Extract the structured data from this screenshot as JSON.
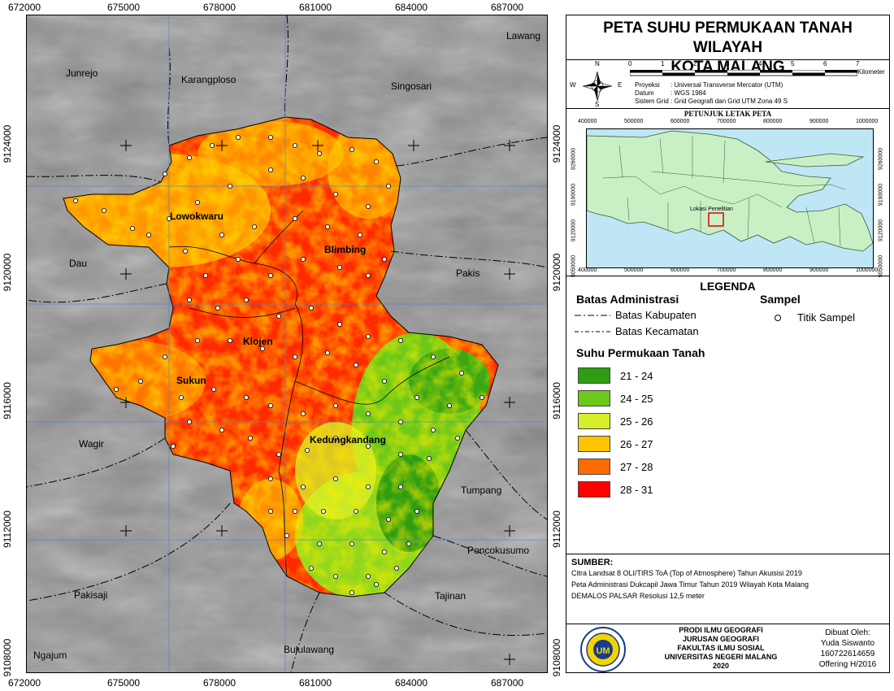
{
  "title": {
    "line1": "PETA SUHU PERMUKAAN TANAH WILAYAH",
    "line2": "KOTA MALANG"
  },
  "grid": {
    "top_x": [
      "672000",
      "675000",
      "678000",
      "681000",
      "684000",
      "687000"
    ],
    "bottom_x": [
      "672000",
      "675000",
      "678000",
      "681000",
      "684000",
      "687000"
    ],
    "left_y": [
      "9124000",
      "9120000",
      "9116000",
      "9112000",
      "9108000"
    ],
    "right_y": [
      "9124000",
      "9120000",
      "9116000",
      "9112000",
      "9108000"
    ]
  },
  "places": {
    "kabupaten": [
      "Lawang",
      "Junrejo",
      "Karangploso",
      "Singosari",
      "Dau",
      "Pakis",
      "Wagir",
      "Tumpang",
      "Poncokusumo",
      "Pakisaji",
      "Tajinan",
      "Ngajum",
      "Bululawang"
    ],
    "kecamatan": [
      "Lowokwaru",
      "Blimbing",
      "Klojen",
      "Sukun",
      "Kedungkandang"
    ]
  },
  "scalebar": {
    "ticks": [
      "0",
      "1",
      "2",
      "3",
      "4",
      "5",
      "6",
      "7"
    ],
    "unit": "Kilometer"
  },
  "compass": {
    "n": "N",
    "s": "S",
    "e": "E",
    "w": "W"
  },
  "projection": {
    "proj_label": "Proyeksi",
    "proj_value": ": Universal Transverse Mercator (UTM)",
    "datum_label": "Datum",
    "datum_value": ": WGS 1984",
    "grid_label": "Sistem Grid",
    "grid_value": ": Grid Geografi dan Grid UTM Zona 49 S"
  },
  "inset": {
    "title": "PETUNJUK LETAK PETA",
    "x_ticks": [
      "400000",
      "500000",
      "600000",
      "700000",
      "800000",
      "900000",
      "1000000"
    ],
    "y_ticks": [
      "9260000",
      "9190000",
      "9120000",
      "9050000"
    ],
    "study_label": "Lokasi Penelitian"
  },
  "legend": {
    "title": "LEGENDA",
    "admin_title": "Batas Administrasi",
    "admin_items": [
      "Batas Kabupaten",
      "Batas Kecamatan"
    ],
    "sample_title": "Sampel",
    "sample_item": "Titik Sampel",
    "lst_title": "Suhu Permukaan Tanah",
    "classes": [
      {
        "label": "21 - 24",
        "color": "#2e9d12"
      },
      {
        "label": "24 - 25",
        "color": "#6cc81a"
      },
      {
        "label": "25 - 26",
        "color": "#d6ef2a"
      },
      {
        "label": "26 - 27",
        "color": "#ffc400"
      },
      {
        "label": "27 - 28",
        "color": "#ff6a00"
      },
      {
        "label": "28 - 31",
        "color": "#ff0000"
      }
    ]
  },
  "source": {
    "title": "SUMBER:",
    "lines": [
      "Citra Landsat 8 OLI/TIRS ToA (Top of Atmosphere) Tahun Akuisisi 2019",
      "Peta Administrasi Dukcapil Jawa Timur Tahun 2019 Wilayah Kota Malang",
      "DEMALOS PALSAR Resolusi 12,5 meter"
    ]
  },
  "footer": {
    "institution": [
      "PRODI ILMU GEOGRAFI",
      "JURUSAN GEOGRAFI",
      "FAKULTAS ILMU SOSIAL",
      "UNIVERSITAS NEGERI MALANG",
      "2020"
    ],
    "author": [
      "Dibuat Oleh:",
      "Yuda Siswanto",
      "160722614659",
      "Offering H/2016"
    ],
    "logo_text": "UM"
  }
}
